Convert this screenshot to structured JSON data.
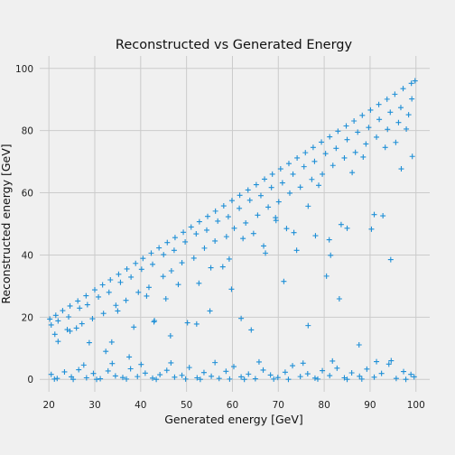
{
  "chart_data": {
    "type": "scatter",
    "title": "Reconstructed vs Generated Energy",
    "xlabel": "Generated energy [GeV]",
    "ylabel": "Reconstructed energy [GeV]",
    "xlim": [
      18,
      103
    ],
    "ylim": [
      -4,
      104
    ],
    "xticks": [
      20,
      30,
      40,
      50,
      60,
      70,
      80,
      90,
      100
    ],
    "yticks": [
      0,
      20,
      40,
      60,
      80,
      100
    ],
    "grid": true,
    "legend": "none",
    "marker": "plus",
    "color": "#1f8fd6",
    "background": "#f0f0f0",
    "series": [
      {
        "description_of_structure": "dense band just below y = 0.975x, scattered points below, cluster near y = 0",
        "x": [
          20.2,
          21.5,
          23.0,
          24.6,
          26.3,
          28.1,
          30.0,
          31.7,
          33.4,
          35.2,
          37.0,
          38.9,
          40.5,
          42.3,
          44.0,
          45.8,
          47.5,
          49.3,
          51.0,
          52.8,
          54.6,
          56.3,
          58.1,
          59.9,
          61.6,
          63.4,
          65.2,
          67.0,
          68.7,
          70.5,
          72.3,
          74.1,
          75.9,
          77.6,
          79.4,
          81.2,
          83.0,
          84.8,
          86.5,
          88.3,
          90.1,
          91.9,
          93.7,
          95.4,
          97.2,
          99.0,
          99.8
        ],
        "y": [
          19.4,
          20.6,
          22.1,
          23.6,
          25.2,
          26.9,
          28.8,
          30.4,
          32.0,
          33.8,
          35.5,
          37.3,
          38.9,
          40.6,
          42.3,
          44.0,
          45.6,
          47.3,
          49.0,
          50.7,
          52.4,
          54.1,
          55.8,
          57.5,
          59.2,
          60.9,
          62.6,
          64.4,
          66.0,
          67.7,
          69.4,
          71.2,
          72.9,
          74.6,
          76.3,
          78.0,
          79.8,
          81.5,
          83.1,
          84.9,
          86.6,
          88.4,
          90.1,
          91.7,
          93.5,
          95.2,
          96.0
        ]
      },
      {
        "x": [
          20.5,
          22.0,
          24.3,
          26.7,
          28.4,
          30.8,
          33.1,
          35.6,
          37.9,
          40.2,
          42.6,
          45.0,
          47.3,
          49.7,
          52.1,
          54.4,
          56.8,
          59.1,
          61.5,
          63.8,
          66.2,
          68.5,
          70.9,
          73.2,
          75.6,
          77.9,
          80.3,
          82.6,
          85.0,
          87.3,
          89.7,
          92.0,
          94.4,
          96.7,
          99.1
        ],
        "y": [
          17.5,
          18.8,
          20.1,
          22.9,
          24.0,
          26.5,
          28.0,
          31.2,
          32.9,
          35.4,
          37.0,
          40.1,
          41.5,
          44.2,
          46.8,
          48.0,
          50.9,
          52.3,
          55.0,
          57.6,
          59.1,
          61.7,
          63.2,
          66.0,
          68.4,
          70.1,
          72.6,
          74.3,
          77.1,
          79.5,
          81.0,
          83.6,
          85.9,
          87.4,
          90.2
        ]
      },
      {
        "x": [
          21.3,
          24.0,
          27.2,
          29.5,
          31.9,
          34.6,
          36.8,
          39.5,
          41.8,
          44.9,
          46.7,
          49.0,
          51.6,
          53.9,
          56.2,
          58.7,
          60.4,
          62.9,
          65.5,
          67.8,
          70.1,
          72.5,
          74.8,
          77.3,
          79.6,
          81.9,
          84.4,
          86.8,
          89.1,
          91.4,
          93.8,
          96.2,
          98.4
        ],
        "y": [
          14.5,
          16.0,
          17.9,
          19.5,
          21.2,
          23.8,
          25.4,
          28.0,
          29.6,
          33.1,
          34.9,
          37.5,
          39.0,
          42.2,
          44.5,
          45.9,
          48.6,
          50.3,
          52.8,
          55.4,
          57.1,
          59.9,
          61.8,
          64.3,
          66.0,
          68.8,
          71.2,
          73.0,
          75.7,
          77.9,
          80.4,
          82.6,
          85.1
        ]
      },
      {
        "x": [
          22.0,
          26.0,
          28.8,
          33.7,
          35.0,
          38.5,
          41.3,
          43.0,
          45.5,
          48.2,
          50.2,
          52.7,
          55.3,
          57.9,
          59.8,
          62.3,
          64.6,
          67.2,
          69.4,
          71.8,
          74.0,
          76.5,
          78.8,
          81.1,
          83.7,
          86.1,
          88.5,
          90.9,
          93.3,
          95.6,
          97.9
        ],
        "y": [
          12.2,
          16.5,
          11.8,
          12.0,
          22.0,
          16.8,
          26.8,
          18.9,
          25.9,
          30.5,
          18.2,
          30.9,
          35.9,
          36.2,
          29.0,
          45.3,
          46.9,
          40.6,
          52.0,
          48.5,
          41.5,
          55.7,
          62.4,
          44.9,
          49.8,
          66.5,
          71.5,
          53.0,
          74.6,
          76.2,
          80.5
        ]
      },
      {
        "x": [
          24.6,
          32.4,
          37.5,
          42.9,
          46.5,
          52.2,
          55.1,
          59.3,
          61.9,
          64.1,
          66.8,
          69.5,
          71.2,
          73.4,
          76.5,
          78.1,
          80.5,
          81.4,
          83.3,
          85.0,
          87.6,
          90.3,
          92.8,
          94.5,
          96.8,
          99.2
        ],
        "y": [
          15.5,
          9.0,
          7.2,
          18.5,
          14.0,
          17.8,
          22.0,
          38.7,
          19.6,
          15.9,
          42.9,
          51.1,
          31.5,
          47.2,
          17.3,
          46.2,
          33.2,
          39.9,
          25.9,
          48.6,
          11.1,
          48.3,
          52.6,
          38.5,
          67.7,
          71.7
        ]
      },
      {
        "x": [
          20.5,
          21.8,
          23.4,
          24.9,
          26.5,
          28.2,
          29.7,
          31.2,
          32.9,
          34.5,
          36.1,
          37.8,
          39.3,
          41.0,
          42.6,
          44.2,
          45.7,
          47.4,
          49.0,
          50.6,
          52.3,
          53.8,
          55.4,
          57.1,
          58.6,
          60.3,
          61.9,
          63.5,
          65.0,
          66.7,
          68.3,
          69.9,
          71.5,
          73.1,
          74.8,
          76.4,
          78.0,
          79.6,
          81.2,
          82.8,
          84.4,
          86.0,
          87.7,
          89.3,
          90.9,
          92.5,
          94.1,
          95.7,
          97.3,
          98.9,
          99.6
        ],
        "y": [
          1.6,
          0.3,
          2.4,
          0.8,
          3.1,
          0.5,
          1.9,
          0.2,
          2.7,
          1.1,
          0.6,
          3.4,
          0.9,
          2.0,
          0.4,
          1.5,
          2.9,
          0.7,
          1.3,
          3.8,
          0.5,
          2.2,
          1.0,
          0.3,
          2.6,
          4.1,
          0.8,
          1.7,
          0.2,
          3.0,
          1.4,
          0.6,
          2.3,
          4.4,
          0.9,
          1.8,
          0.4,
          2.8,
          1.2,
          3.6,
          0.5,
          2.1,
          1.0,
          3.3,
          0.7,
          1.9,
          4.9,
          0.3,
          2.5,
          1.6,
          0.8
        ]
      },
      {
        "x": [
          21.2,
          25.3,
          27.6,
          30.4,
          33.8,
          36.9,
          40.1,
          43.4,
          46.6,
          49.8,
          53.0,
          56.2,
          59.4,
          62.6,
          65.8,
          69.0,
          72.2,
          75.4,
          78.6,
          81.8,
          85.0,
          88.2,
          91.4,
          94.6,
          97.8
        ],
        "y": [
          0.1,
          0.0,
          4.6,
          0.0,
          5.1,
          0.1,
          4.8,
          0.0,
          5.3,
          0.1,
          0.0,
          5.4,
          0.1,
          0.0,
          5.6,
          0.1,
          0.0,
          5.2,
          0.1,
          5.9,
          0.0,
          0.1,
          5.7,
          6.0,
          0.0
        ]
      }
    ]
  }
}
